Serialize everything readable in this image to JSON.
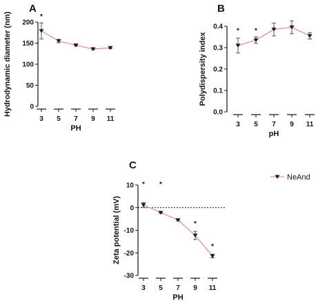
{
  "legend": {
    "label": "NeAnd",
    "placement": "right"
  },
  "colors": {
    "line": "#e8908f",
    "marker": "#1a1a1a",
    "axis": "#111111",
    "errorbar": "#555555"
  },
  "chart_data": [
    {
      "panel": "A",
      "type": "line",
      "xlabel": "PH",
      "ylabel": "Hydrodynamic diameter (nm)",
      "x": [
        3,
        5,
        7,
        9,
        11
      ],
      "y": [
        179,
        155,
        145,
        136,
        139
      ],
      "err": [
        19,
        4,
        2,
        2,
        2
      ],
      "annotations": [
        {
          "x": 3,
          "text": "*"
        }
      ],
      "ylim": [
        0,
        200
      ],
      "yticks": [
        0,
        50,
        100,
        150,
        200
      ],
      "xticks": [
        3,
        5,
        7,
        9,
        11
      ],
      "zero_line": false
    },
    {
      "panel": "B",
      "type": "line",
      "xlabel": "pH",
      "ylabel": "Polydispersity index",
      "x": [
        3,
        5,
        7,
        9,
        11
      ],
      "y": [
        0.31,
        0.335,
        0.385,
        0.395,
        0.355
      ],
      "err": [
        0.035,
        0.015,
        0.03,
        0.03,
        0.015
      ],
      "annotations": [
        {
          "x": 3,
          "text": "*"
        },
        {
          "x": 5,
          "text": "*"
        }
      ],
      "ylim": [
        0,
        0.4
      ],
      "yticks": [
        0.0,
        0.1,
        0.2,
        0.3,
        0.4
      ],
      "xticks": [
        3,
        5,
        7,
        9,
        11
      ],
      "zero_line": false
    },
    {
      "panel": "C",
      "type": "line",
      "xlabel": "PH",
      "ylabel": "Zeta potential (mV)",
      "x": [
        3,
        5,
        7,
        9,
        11
      ],
      "y": [
        1.2,
        -2.2,
        -5.5,
        -12.3,
        -21.4
      ],
      "err": [
        1.0,
        0.3,
        0.4,
        1.8,
        0.8
      ],
      "annotations": [
        {
          "x": 3,
          "text": "*"
        },
        {
          "x": 5,
          "text": "*"
        },
        {
          "x": 9,
          "text": "*"
        },
        {
          "x": 11,
          "text": "*"
        }
      ],
      "ylim": [
        -30,
        10
      ],
      "yticks": [
        10,
        0,
        -10,
        -20,
        -30
      ],
      "xticks": [
        3,
        5,
        7,
        9,
        11
      ],
      "zero_line": true
    }
  ]
}
